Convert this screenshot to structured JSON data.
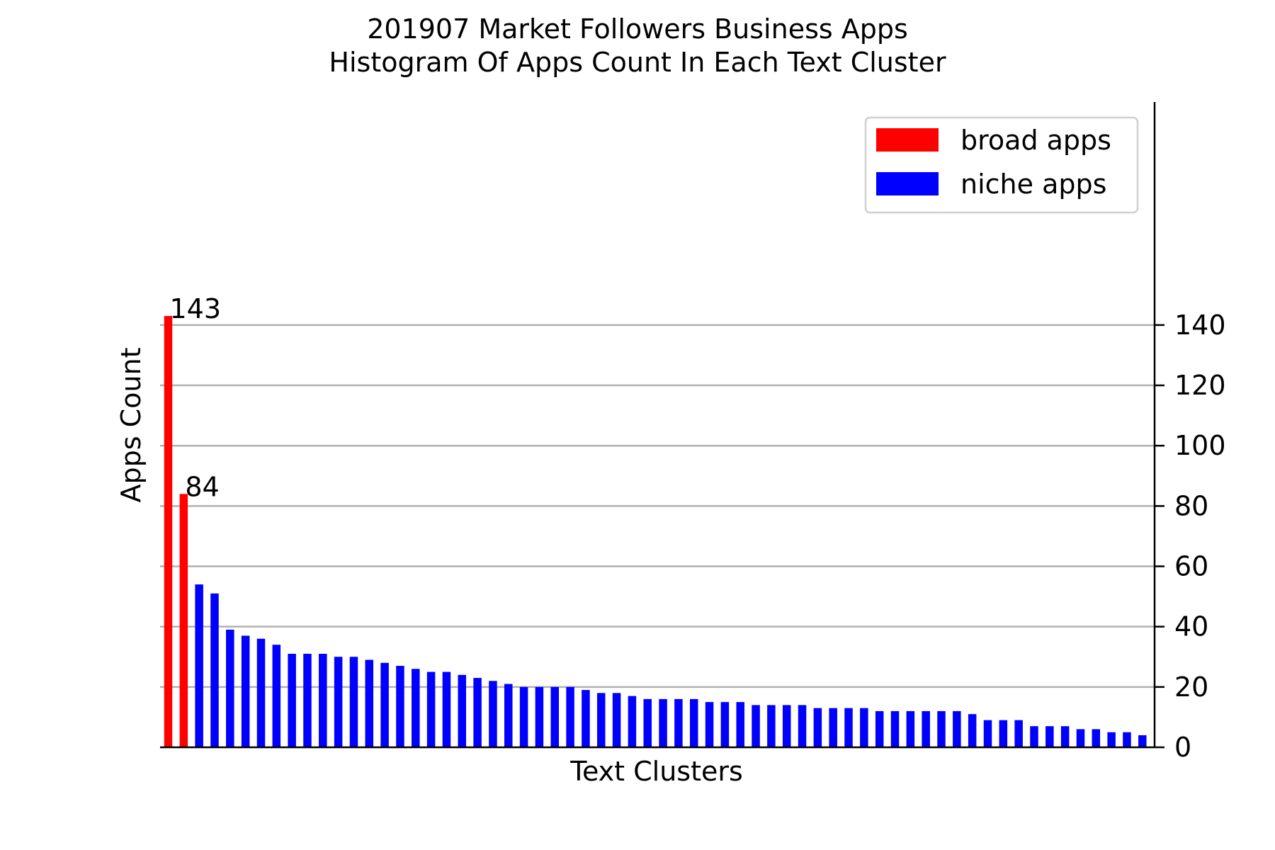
{
  "chart_data": {
    "type": "bar",
    "title": "201907 Market Followers Business Apps",
    "subtitle": "Histogram Of Apps Count In Each Text Cluster",
    "xlabel": "Text Clusters",
    "ylabel": "Apps Count",
    "ylim": [
      0,
      150
    ],
    "yticks": [
      0,
      20,
      40,
      60,
      80,
      100,
      120,
      140
    ],
    "y_axis_side": "right",
    "grid": "horizontal",
    "legend_position": "top-right",
    "series": [
      {
        "name": "broad apps",
        "color": "#ff0000",
        "values": [
          143,
          84
        ]
      },
      {
        "name": "niche apps",
        "color": "#0000ff",
        "values": [
          54,
          51,
          39,
          37,
          36,
          34,
          31,
          31,
          31,
          30,
          30,
          29,
          28,
          27,
          26,
          25,
          25,
          24,
          23,
          22,
          21,
          20,
          20,
          20,
          20,
          19,
          18,
          18,
          17,
          16,
          16,
          16,
          16,
          15,
          15,
          15,
          14,
          14,
          14,
          14,
          13,
          13,
          13,
          13,
          12,
          12,
          12,
          12,
          12,
          12,
          11,
          9,
          9,
          9,
          7,
          7,
          7,
          6,
          6,
          5,
          5,
          4
        ]
      }
    ],
    "data_labels": [
      {
        "series": "broad apps",
        "index": 0,
        "text": "143"
      },
      {
        "series": "broad apps",
        "index": 1,
        "text": "84"
      }
    ]
  }
}
